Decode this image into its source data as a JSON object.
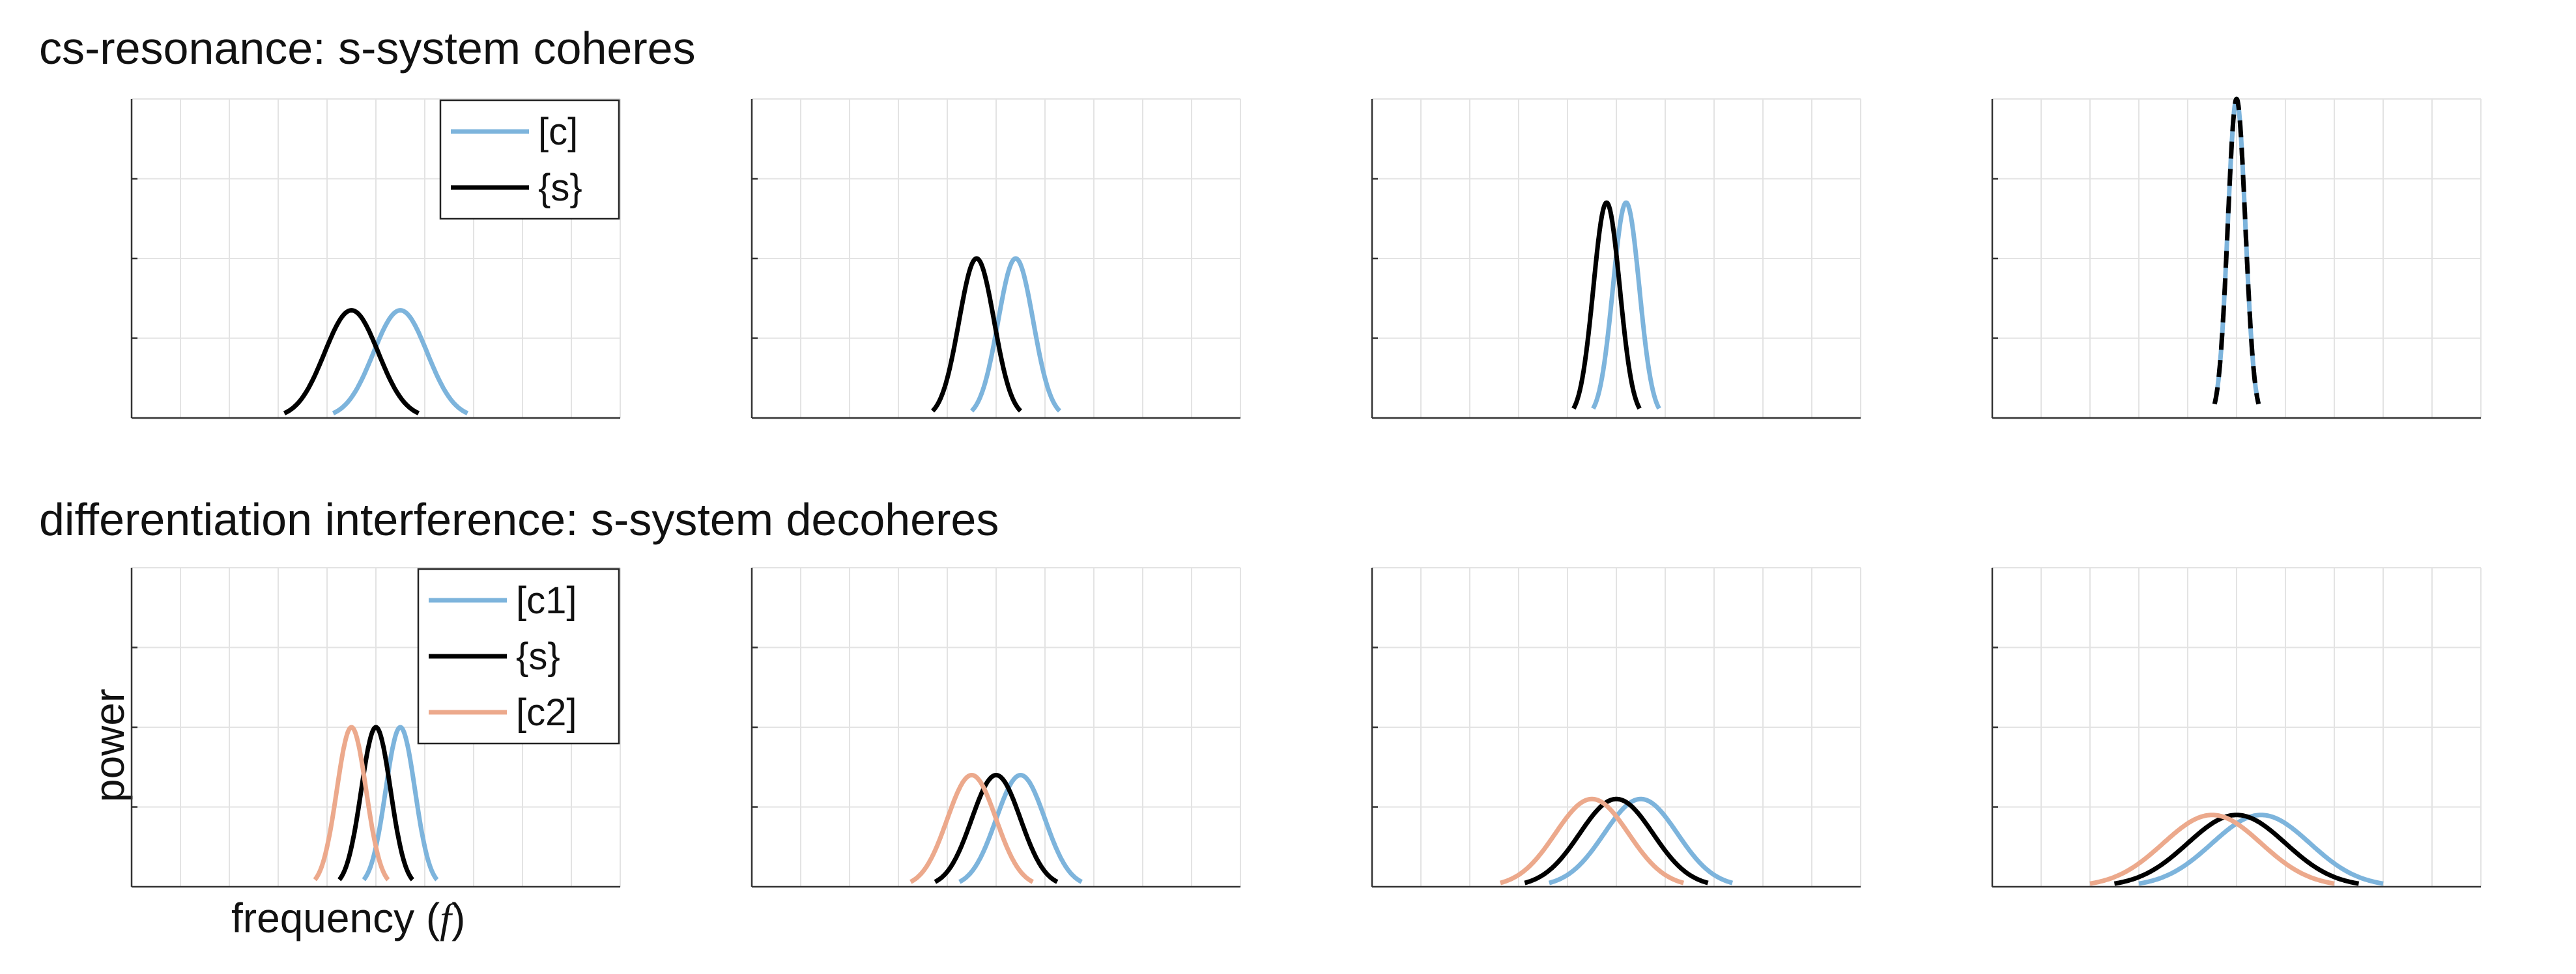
{
  "figure": {
    "row_titles": [
      "cs-resonance: s-system coheres",
      "differentiation interference: s-system decoheres"
    ],
    "ylabel": "power",
    "xlabel_main": "frequency (",
    "xlabel_var": "f",
    "xlabel_close": ")"
  },
  "colors": {
    "c": "#7db4dc",
    "s": "#000000",
    "c2": "#eca98c",
    "grid": "#e3e3e3",
    "axis": "#333333"
  },
  "chart_data": [
    {
      "type": "line",
      "row": 1,
      "col": 1,
      "grid": true,
      "xlim": [
        0,
        10
      ],
      "ylim": [
        0,
        4
      ],
      "legend": "top-right",
      "series": [
        {
          "name": "[c]",
          "color": "c",
          "mean": 5.5,
          "sd": 0.55,
          "peak": 1.35,
          "dashed": false
        },
        {
          "name": "{s}",
          "color": "s",
          "mean": 4.5,
          "sd": 0.55,
          "peak": 1.35,
          "dashed": false
        }
      ]
    },
    {
      "type": "line",
      "row": 1,
      "col": 2,
      "grid": true,
      "xlim": [
        0,
        10
      ],
      "ylim": [
        0,
        4
      ],
      "series": [
        {
          "color": "c",
          "mean": 5.4,
          "sd": 0.36,
          "peak": 2.0,
          "dashed": false
        },
        {
          "color": "s",
          "mean": 4.6,
          "sd": 0.36,
          "peak": 2.0,
          "dashed": false
        }
      ]
    },
    {
      "type": "line",
      "row": 1,
      "col": 3,
      "grid": true,
      "xlim": [
        0,
        10
      ],
      "ylim": [
        0,
        4
      ],
      "series": [
        {
          "color": "c",
          "mean": 5.2,
          "sd": 0.27,
          "peak": 2.7,
          "dashed": false
        },
        {
          "color": "s",
          "mean": 4.8,
          "sd": 0.27,
          "peak": 2.7,
          "dashed": false
        }
      ]
    },
    {
      "type": "line",
      "row": 1,
      "col": 4,
      "grid": true,
      "xlim": [
        0,
        10
      ],
      "ylim": [
        0,
        4
      ],
      "series": [
        {
          "color": "c",
          "mean": 5.0,
          "sd": 0.18,
          "peak": 4.0,
          "dashed": false
        },
        {
          "color": "s",
          "mean": 5.0,
          "sd": 0.18,
          "peak": 4.0,
          "dashed": true
        }
      ]
    },
    {
      "type": "line",
      "row": 2,
      "col": 1,
      "grid": true,
      "xlim": [
        0,
        10
      ],
      "ylim": [
        0,
        4
      ],
      "legend": "top-right",
      "series": [
        {
          "name": "[c1]",
          "color": "c",
          "mean": 5.5,
          "sd": 0.3,
          "peak": 2.0,
          "dashed": false
        },
        {
          "name": "{s}",
          "color": "s",
          "mean": 5.0,
          "sd": 0.3,
          "peak": 2.0,
          "dashed": false
        },
        {
          "name": "[c2]",
          "color": "c2",
          "mean": 4.5,
          "sd": 0.3,
          "peak": 2.0,
          "dashed": false
        }
      ]
    },
    {
      "type": "line",
      "row": 2,
      "col": 2,
      "grid": true,
      "xlim": [
        0,
        10
      ],
      "ylim": [
        0,
        4
      ],
      "series": [
        {
          "color": "c",
          "mean": 5.5,
          "sd": 0.5,
          "peak": 1.4,
          "dashed": false
        },
        {
          "color": "s",
          "mean": 5.0,
          "sd": 0.5,
          "peak": 1.4,
          "dashed": false
        },
        {
          "color": "c2",
          "mean": 4.5,
          "sd": 0.5,
          "peak": 1.4,
          "dashed": false
        }
      ]
    },
    {
      "type": "line",
      "row": 2,
      "col": 3,
      "grid": true,
      "xlim": [
        0,
        10
      ],
      "ylim": [
        0,
        4
      ],
      "series": [
        {
          "color": "c",
          "mean": 5.5,
          "sd": 0.75,
          "peak": 1.1,
          "dashed": false
        },
        {
          "color": "s",
          "mean": 5.0,
          "sd": 0.75,
          "peak": 1.1,
          "dashed": false
        },
        {
          "color": "c2",
          "mean": 4.5,
          "sd": 0.75,
          "peak": 1.1,
          "dashed": false
        }
      ]
    },
    {
      "type": "line",
      "row": 2,
      "col": 4,
      "grid": true,
      "xlim": [
        0,
        10
      ],
      "ylim": [
        0,
        4
      ],
      "series": [
        {
          "color": "c",
          "mean": 5.5,
          "sd": 1.0,
          "peak": 0.9,
          "dashed": false
        },
        {
          "color": "s",
          "mean": 5.0,
          "sd": 1.0,
          "peak": 0.9,
          "dashed": false
        },
        {
          "color": "c2",
          "mean": 4.5,
          "sd": 1.0,
          "peak": 0.9,
          "dashed": false
        }
      ]
    }
  ]
}
